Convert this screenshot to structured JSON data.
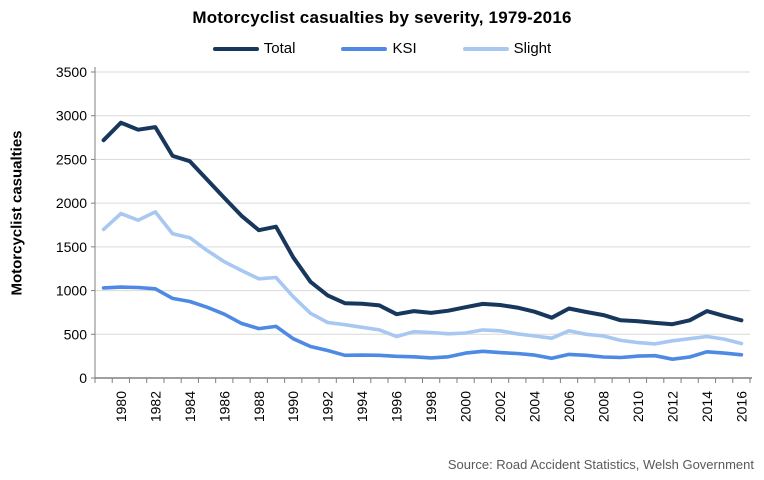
{
  "title": "Motorcyclist casualties by severity, 1979-2016",
  "source_note": "Source: Road Accident Statistics, Welsh Government",
  "colors": {
    "total_line": "#17375D",
    "ksi_line": "#4E8AE4",
    "slight_line": "#A8C8F2",
    "gridline": "#D9D9D9",
    "axis": "#808080",
    "tick_text": "#000000",
    "source_text": "#595959",
    "background": "#FFFFFF"
  },
  "chart_data": {
    "type": "line",
    "title": "Motorcyclist casualties by severity, 1979-2016",
    "xlabel": "",
    "ylabel": "Motorcyclist casualties",
    "ylim": [
      0,
      3500
    ],
    "yticks": [
      0,
      500,
      1000,
      1500,
      2000,
      2500,
      3000,
      3500
    ],
    "grid": "horizontal",
    "legend_position": "top",
    "x": [
      1979,
      1980,
      1981,
      1982,
      1983,
      1984,
      1985,
      1986,
      1987,
      1988,
      1989,
      1990,
      1991,
      1992,
      1993,
      1994,
      1995,
      1996,
      1997,
      1998,
      1999,
      2000,
      2001,
      2002,
      2003,
      2004,
      2005,
      2006,
      2007,
      2008,
      2009,
      2010,
      2011,
      2012,
      2013,
      2014,
      2015,
      2016
    ],
    "x_labeled_ticks": [
      1980,
      1982,
      1984,
      1986,
      1988,
      1990,
      1992,
      1994,
      1996,
      1998,
      2000,
      2002,
      2004,
      2006,
      2008,
      2010,
      2012,
      2014,
      2016
    ],
    "series": [
      {
        "name": "Total",
        "color": "#17375D",
        "values": [
          2720,
          2920,
          2840,
          2870,
          2540,
          2480,
          2270,
          2060,
          1855,
          1690,
          1730,
          1380,
          1100,
          945,
          855,
          850,
          830,
          730,
          765,
          745,
          770,
          810,
          848,
          835,
          805,
          758,
          690,
          795,
          755,
          720,
          660,
          650,
          630,
          615,
          660,
          765,
          710,
          660
        ]
      },
      {
        "name": "KSI",
        "color": "#4E8AE4",
        "values": [
          1030,
          1040,
          1035,
          1020,
          910,
          875,
          810,
          730,
          625,
          565,
          590,
          450,
          360,
          315,
          260,
          262,
          260,
          248,
          243,
          230,
          243,
          285,
          305,
          290,
          280,
          262,
          225,
          270,
          260,
          240,
          235,
          250,
          255,
          215,
          240,
          300,
          285,
          265
        ]
      },
      {
        "name": "Slight",
        "color": "#A8C8F2",
        "values": [
          1700,
          1880,
          1805,
          1900,
          1650,
          1605,
          1460,
          1330,
          1230,
          1135,
          1150,
          930,
          740,
          635,
          610,
          580,
          550,
          475,
          530,
          520,
          505,
          515,
          550,
          540,
          505,
          480,
          455,
          540,
          500,
          480,
          430,
          405,
          390,
          425,
          450,
          475,
          445,
          395
        ]
      }
    ]
  }
}
